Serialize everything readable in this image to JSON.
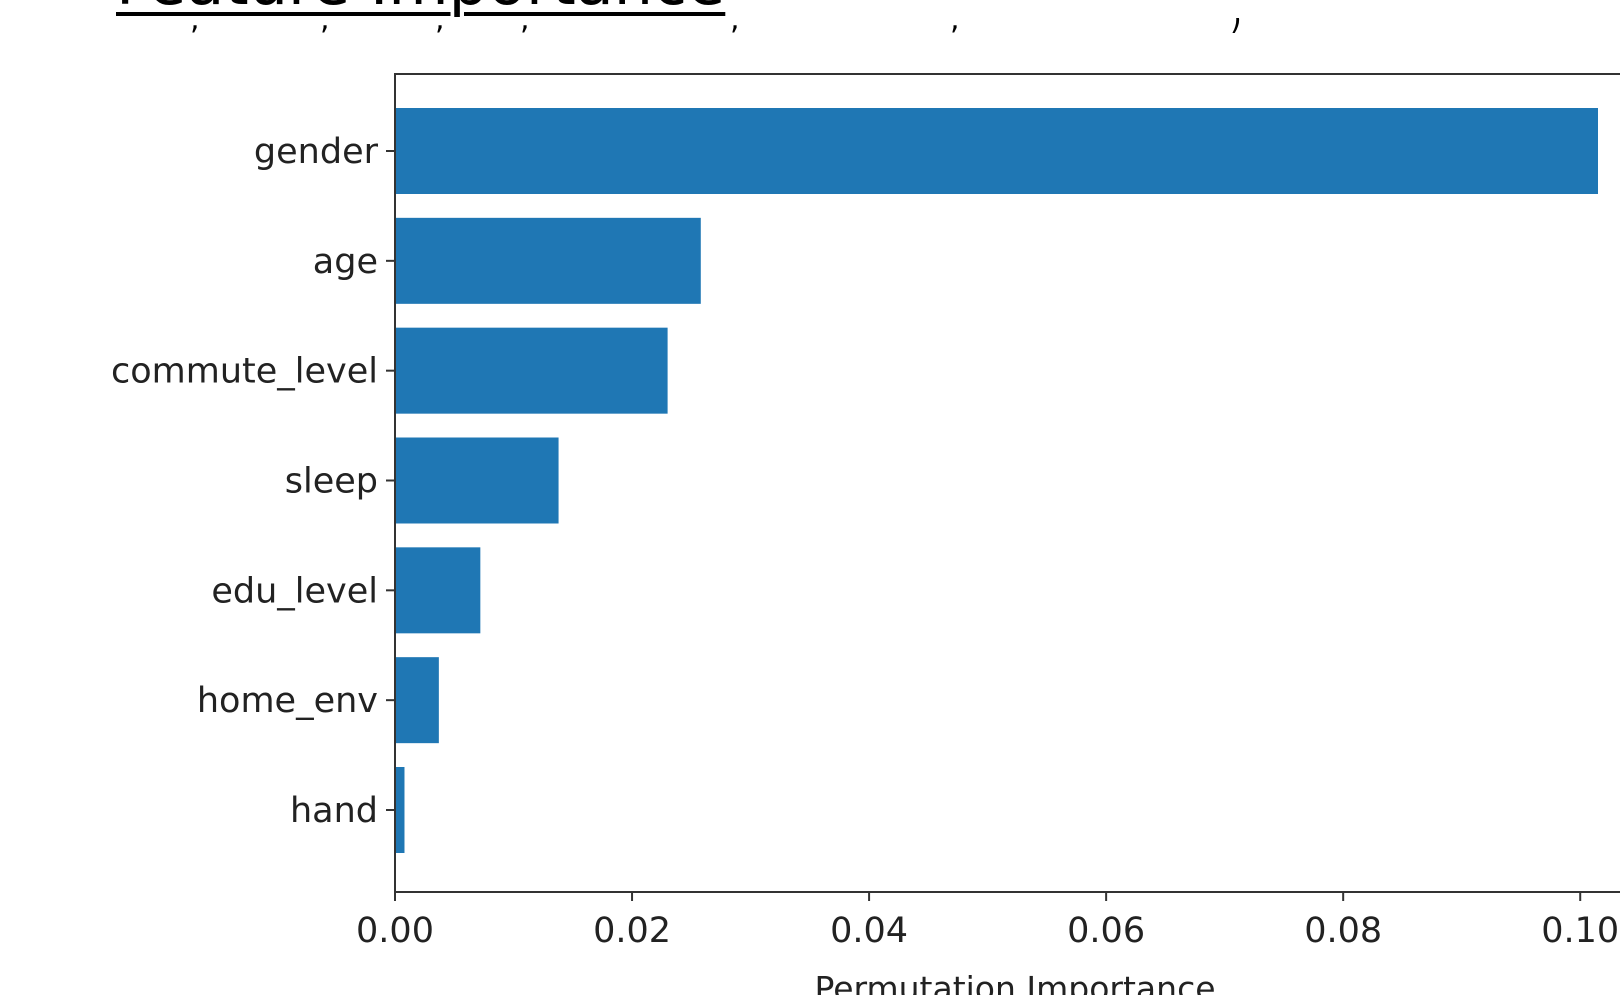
{
  "slide": {
    "title": "Feature Importance"
  },
  "chart_data": {
    "type": "bar",
    "orientation": "horizontal",
    "categories": [
      "gender",
      "age",
      "commute_level",
      "sleep",
      "edu_level",
      "home_env",
      "hand"
    ],
    "values": [
      0.1015,
      0.0258,
      0.023,
      0.0138,
      0.0072,
      0.0037,
      0.0008
    ],
    "xlabel": "Permutation Importance",
    "ylabel": "",
    "xlim": [
      0,
      0.1015
    ],
    "xticks": [
      0.0,
      0.02,
      0.04,
      0.06,
      0.08,
      0.1
    ],
    "xtick_labels": [
      "0.00",
      "0.02",
      "0.04",
      "0.06",
      "0.08",
      "0.10"
    ],
    "bar_color": "#1f77b4",
    "grid": false
  }
}
